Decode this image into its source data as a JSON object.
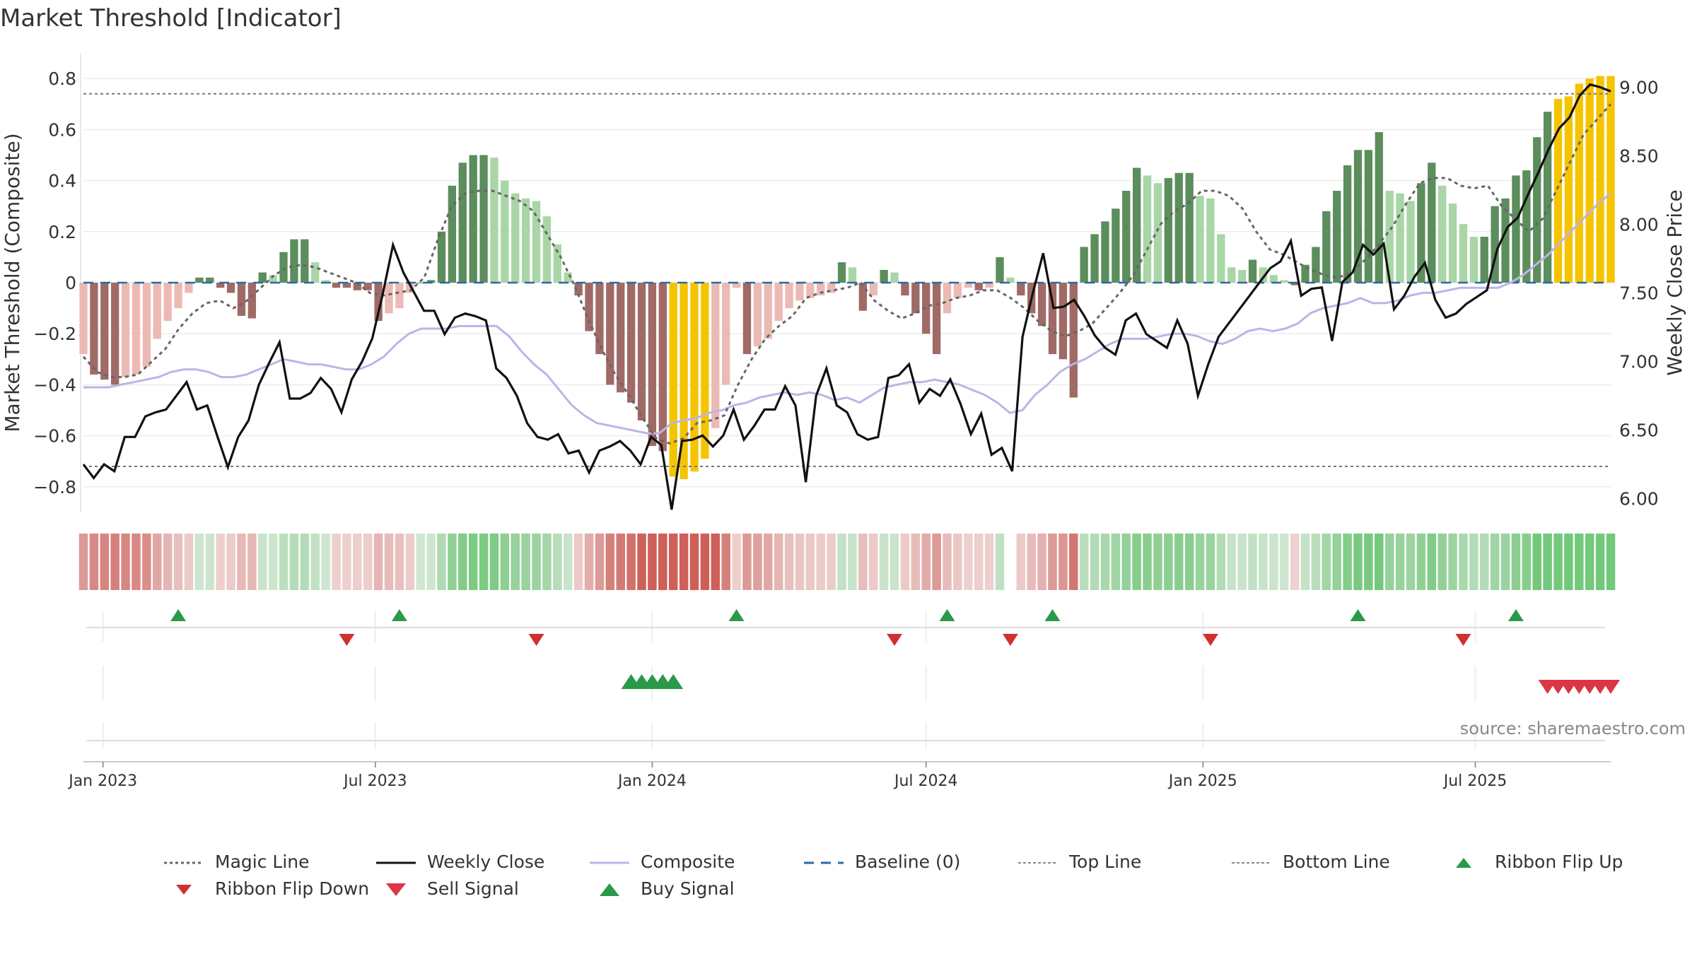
{
  "title": "Market Threshold [Indicator]",
  "source": "source: sharemaestro.com",
  "chart_data": {
    "type": "bar",
    "start_date": "2022-12-19",
    "end_date": "2025-09-29",
    "y_left": {
      "label": "Market Threshold (Composite)",
      "ylim": [
        -0.9,
        0.9
      ],
      "ticks": [
        0.8,
        0.6,
        0.4,
        0.2,
        0,
        -0.2,
        -0.4,
        -0.6,
        -0.8
      ],
      "tick_labels": [
        "0.8",
        "0.6",
        "0.4",
        "0.2",
        "0",
        "−0.2",
        "−0.4",
        "−0.6",
        "−0.8"
      ]
    },
    "y_right": {
      "label": "Weekly Close Price",
      "ylim": [
        5.9,
        9.25
      ],
      "ticks": [
        9.0,
        8.5,
        8.0,
        7.5,
        7.0,
        6.5,
        6.0
      ],
      "tick_labels": [
        "9.00",
        "8.50",
        "8.00",
        "7.50",
        "7.00",
        "6.50",
        "6.00"
      ]
    },
    "x_ticks": [
      {
        "label": "Jan 2023",
        "date": "2023-01-01"
      },
      {
        "label": "Jul 2023",
        "date": "2023-07-01"
      },
      {
        "label": "Jan 2024",
        "date": "2024-01-01"
      },
      {
        "label": "Jul 2024",
        "date": "2024-07-01"
      },
      {
        "label": "Jan 2025",
        "date": "2025-01-01"
      },
      {
        "label": "Jul 2025",
        "date": "2025-07-01"
      }
    ],
    "grid": true,
    "top_line": 0.74,
    "bottom_line": -0.72,
    "composite_bars": [
      -0.28,
      -0.36,
      -0.38,
      -0.4,
      -0.37,
      -0.36,
      -0.33,
      -0.22,
      -0.15,
      -0.1,
      -0.04,
      0.02,
      0.02,
      -0.02,
      -0.04,
      -0.13,
      -0.14,
      0.04,
      0.03,
      0.12,
      0.17,
      0.17,
      0.08,
      0.01,
      -0.02,
      -0.02,
      -0.03,
      -0.03,
      -0.15,
      -0.12,
      -0.1,
      -0.04,
      0.0,
      0.01,
      0.2,
      0.38,
      0.47,
      0.5,
      0.5,
      0.49,
      0.4,
      0.35,
      0.33,
      0.32,
      0.26,
      0.15,
      0.04,
      -0.05,
      -0.19,
      -0.28,
      -0.4,
      -0.43,
      -0.47,
      -0.54,
      -0.64,
      -0.66,
      -0.76,
      -0.77,
      -0.74,
      -0.69,
      -0.57,
      -0.4,
      -0.02,
      -0.28,
      -0.25,
      -0.22,
      -0.15,
      -0.1,
      -0.07,
      -0.06,
      -0.05,
      -0.04,
      0.08,
      0.06,
      -0.11,
      -0.05,
      0.05,
      0.04,
      -0.05,
      -0.12,
      -0.2,
      -0.28,
      -0.12,
      -0.06,
      -0.02,
      -0.03,
      -0.02,
      0.1,
      0.02,
      -0.05,
      -0.12,
      -0.17,
      -0.28,
      -0.3,
      -0.45,
      0.14,
      0.19,
      0.24,
      0.29,
      0.36,
      0.45,
      0.42,
      0.39,
      0.41,
      0.43,
      0.43,
      0.34,
      0.33,
      0.19,
      0.06,
      0.05,
      0.09,
      0.06,
      0.03,
      0.01,
      -0.01,
      0.07,
      0.14,
      0.28,
      0.36,
      0.46,
      0.52,
      0.52,
      0.59,
      0.36,
      0.35,
      0.32,
      0.39,
      0.47,
      0.38,
      0.31,
      0.23,
      0.18,
      0.18,
      0.3,
      0.33,
      0.42,
      0.44,
      0.57,
      0.67,
      0.72,
      0.73,
      0.78,
      0.8,
      0.81,
      0.81
    ],
    "weekly_close": [
      6.25,
      6.15,
      6.25,
      6.2,
      6.45,
      6.45,
      6.6,
      6.63,
      6.65,
      6.75,
      6.85,
      6.65,
      6.68,
      6.45,
      6.23,
      6.45,
      6.57,
      6.83,
      6.99,
      7.14,
      6.73,
      6.73,
      6.77,
      6.88,
      6.8,
      6.63,
      6.87,
      7.0,
      7.17,
      7.49,
      7.85,
      7.65,
      7.51,
      7.37,
      7.37,
      7.2,
      7.32,
      7.35,
      7.33,
      7.3,
      6.95,
      6.88,
      6.75,
      6.55,
      6.45,
      6.43,
      6.47,
      6.33,
      6.35,
      6.19,
      6.35,
      6.38,
      6.42,
      6.35,
      6.25,
      6.45,
      6.39,
      5.92,
      6.42,
      6.43,
      6.46,
      6.38,
      6.46,
      6.65,
      6.43,
      6.53,
      6.65,
      6.65,
      6.82,
      6.68,
      6.12,
      6.75,
      6.95,
      6.68,
      6.63,
      6.47,
      6.43,
      6.45,
      6.88,
      6.9,
      6.98,
      6.7,
      6.8,
      6.75,
      6.87,
      6.69,
      6.47,
      6.62,
      6.32,
      6.37,
      6.2,
      7.18,
      7.5,
      7.79,
      7.39,
      7.4,
      7.45,
      7.33,
      7.19,
      7.1,
      7.05,
      7.3,
      7.35,
      7.2,
      7.15,
      7.1,
      7.3,
      7.13,
      6.75,
      6.98,
      7.18,
      7.28,
      7.38,
      7.48,
      7.58,
      7.68,
      7.73,
      7.88,
      7.48,
      7.53,
      7.54,
      7.15,
      7.58,
      7.65,
      7.85,
      7.78,
      7.86,
      7.38,
      7.48,
      7.62,
      7.72,
      7.45,
      7.32,
      7.35,
      7.42,
      7.47,
      7.52,
      7.82,
      7.98,
      8.05,
      8.22,
      8.38,
      8.55,
      8.7,
      8.78,
      8.94,
      9.02,
      9.0,
      8.97
    ],
    "composite_line": [
      -0.41,
      -0.41,
      -0.41,
      -0.4,
      -0.39,
      -0.38,
      -0.37,
      -0.35,
      -0.34,
      -0.34,
      -0.35,
      -0.37,
      -0.37,
      -0.36,
      -0.34,
      -0.32,
      -0.3,
      -0.31,
      -0.32,
      -0.32,
      -0.33,
      -0.34,
      -0.34,
      -0.32,
      -0.29,
      -0.24,
      -0.2,
      -0.18,
      -0.18,
      -0.18,
      -0.17,
      -0.17,
      -0.17,
      -0.17,
      -0.21,
      -0.27,
      -0.32,
      -0.36,
      -0.42,
      -0.48,
      -0.52,
      -0.55,
      -0.56,
      -0.57,
      -0.58,
      -0.59,
      -0.59,
      -0.55,
      -0.54,
      -0.53,
      -0.51,
      -0.5,
      -0.48,
      -0.47,
      -0.45,
      -0.44,
      -0.43,
      -0.44,
      -0.43,
      -0.44,
      -0.46,
      -0.45,
      -0.47,
      -0.44,
      -0.41,
      -0.4,
      -0.39,
      -0.39,
      -0.38,
      -0.39,
      -0.4,
      -0.42,
      -0.44,
      -0.47,
      -0.51,
      -0.5,
      -0.44,
      -0.4,
      -0.35,
      -0.32,
      -0.3,
      -0.27,
      -0.24,
      -0.22,
      -0.22,
      -0.22,
      -0.21,
      -0.2,
      -0.2,
      -0.21,
      -0.23,
      -0.24,
      -0.22,
      -0.19,
      -0.18,
      -0.19,
      -0.18,
      -0.16,
      -0.12,
      -0.1,
      -0.09,
      -0.08,
      -0.06,
      -0.08,
      -0.08,
      -0.07,
      -0.05,
      -0.04,
      -0.04,
      -0.03,
      -0.02,
      -0.02,
      -0.02,
      -0.02,
      0.0,
      0.03,
      0.07,
      0.11,
      0.16,
      0.21,
      0.26,
      0.31,
      0.35
    ],
    "magic_line": [
      -0.29,
      -0.35,
      -0.37,
      -0.37,
      -0.36,
      -0.31,
      -0.26,
      -0.18,
      -0.12,
      -0.08,
      -0.07,
      -0.1,
      -0.07,
      -0.02,
      0.03,
      0.06,
      0.07,
      0.06,
      0.04,
      0.02,
      0.0,
      -0.04,
      -0.05,
      -0.04,
      -0.03,
      0.02,
      0.17,
      0.3,
      0.35,
      0.36,
      0.36,
      0.34,
      0.32,
      0.28,
      0.19,
      0.1,
      -0.01,
      -0.14,
      -0.26,
      -0.36,
      -0.44,
      -0.53,
      -0.61,
      -0.63,
      -0.61,
      -0.55,
      -0.54,
      -0.52,
      -0.4,
      -0.3,
      -0.22,
      -0.17,
      -0.13,
      -0.06,
      -0.04,
      -0.03,
      -0.02,
      0.0,
      -0.07,
      -0.11,
      -0.14,
      -0.12,
      -0.09,
      -0.08,
      -0.06,
      -0.05,
      -0.03,
      -0.03,
      -0.06,
      -0.1,
      -0.15,
      -0.19,
      -0.21,
      -0.19,
      -0.16,
      -0.1,
      -0.04,
      0.03,
      0.13,
      0.23,
      0.28,
      0.31,
      0.36,
      0.36,
      0.34,
      0.29,
      0.2,
      0.13,
      0.11,
      0.08,
      0.05,
      0.03,
      0.02,
      0.04,
      0.09,
      0.15,
      0.22,
      0.31,
      0.39,
      0.41,
      0.41,
      0.38,
      0.37,
      0.38,
      0.3,
      0.25,
      0.2,
      0.25,
      0.36,
      0.47,
      0.58,
      0.64,
      0.7
    ],
    "ribbon_flip_up_dates": [
      "2023-02-20",
      "2023-07-17",
      "2024-02-26",
      "2024-07-15",
      "2024-09-23",
      "2025-04-14",
      "2025-07-28"
    ],
    "ribbon_flip_down_dates": [
      "2023-06-12",
      "2023-10-16",
      "2024-06-10",
      "2024-08-26",
      "2025-01-06",
      "2025-06-23"
    ],
    "buy_signal_dates": [
      "2023-12-18",
      "2023-12-25",
      "2024-01-01",
      "2024-01-08",
      "2024-01-15"
    ],
    "sell_signal_dates": [
      "2025-08-18",
      "2025-08-25",
      "2025-09-01",
      "2025-09-08",
      "2025-09-15",
      "2025-09-22",
      "2025-09-29"
    ],
    "legend": [
      "Magic Line",
      "Weekly Close",
      "Composite",
      "Baseline (0)",
      "Top Line",
      "Bottom Line",
      "Ribbon Flip Up",
      "Ribbon Flip Down",
      "Sell Signal",
      "Buy Signal"
    ]
  },
  "colors": {
    "bar_strong_green": "#5c8d5c",
    "bar_light_green": "#a9d6a6",
    "bar_strong_red": "#a06a66",
    "bar_light_red": "#ebbab4",
    "bar_extreme": "#f5c400",
    "weekly_close": "#111111",
    "composite_line": "#bdb4e6",
    "magic_line": "#666666",
    "baseline": "#2a6aa0",
    "flip_up": "#2a9a48",
    "flip_down": "#d03030",
    "sell_signal": "#dc3545",
    "buy_signal": "#2a9a48"
  }
}
